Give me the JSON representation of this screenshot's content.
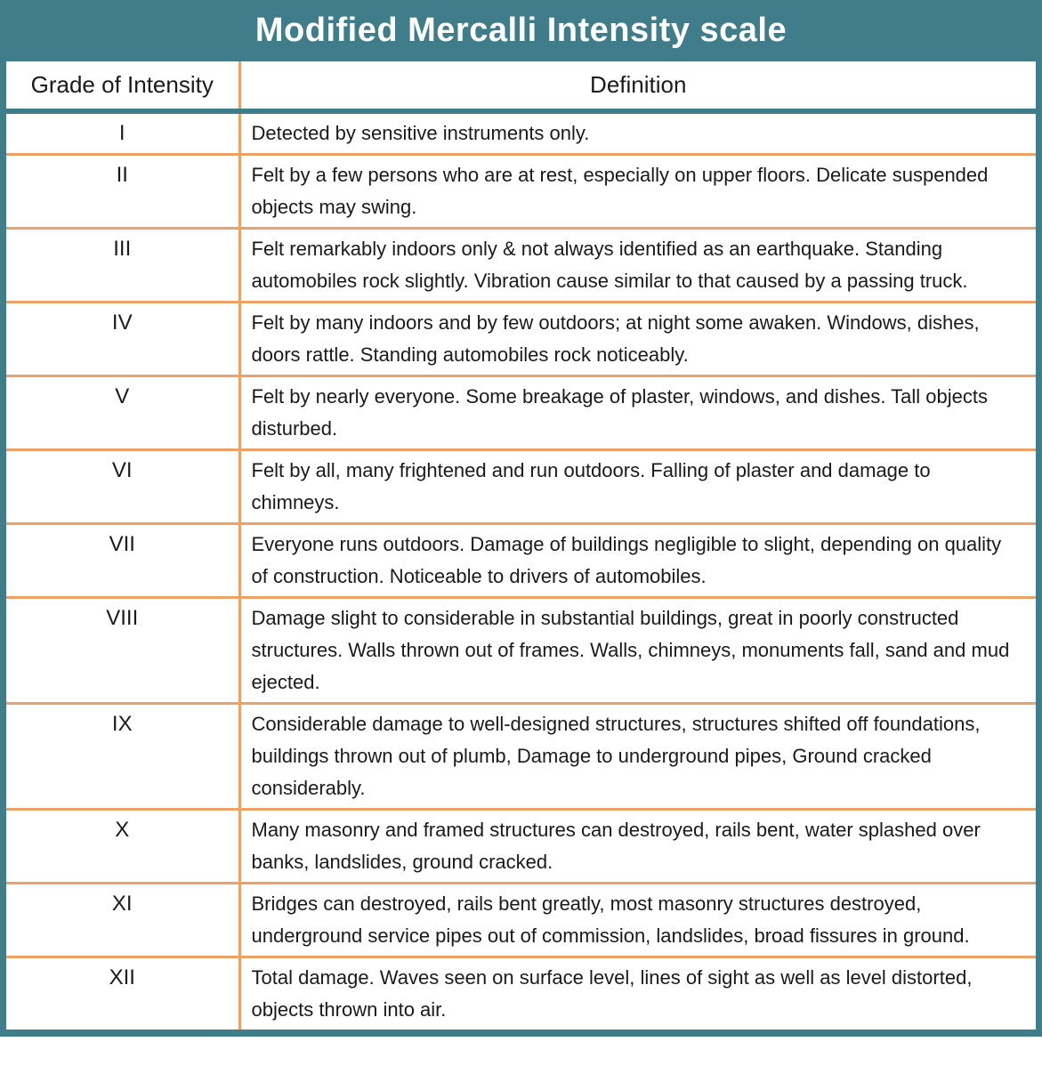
{
  "title": "Modified Mercalli Intensity scale",
  "colors": {
    "teal": "#407d8b",
    "orange": "#eda167",
    "title_text": "#ffffff",
    "body_text": "#1a1a1a"
  },
  "table": {
    "headers": [
      "Grade of Intensity",
      "Definition"
    ],
    "rows": [
      {
        "grade": "I",
        "definition": "Detected by sensitive instruments only."
      },
      {
        "grade": "II",
        "definition": "Felt by a few persons who are at rest, especially on upper floors. Delicate suspended objects may swing."
      },
      {
        "grade": "III",
        "definition": "Felt remarkably indoors only & not always identified as an earthquake. Standing automobiles rock slightly. Vibration cause similar to that caused by a passing truck."
      },
      {
        "grade": "IV",
        "definition": "Felt by many indoors and by few outdoors; at night some awaken. Windows, dishes, doors rattle. Standing automobiles rock noticeably."
      },
      {
        "grade": "V",
        "definition": "Felt by nearly everyone. Some breakage of plaster, windows, and dishes. Tall objects disturbed."
      },
      {
        "grade": "VI",
        "definition": "Felt by all, many frightened and run outdoors. Falling of plaster and damage to chimneys."
      },
      {
        "grade": "VII",
        "definition": "Everyone runs outdoors. Damage of buildings negligible to slight, depending on quality of construction. Noticeable to drivers of automobiles."
      },
      {
        "grade": "VIII",
        "definition": "Damage slight to considerable in substantial buildings, great in poorly constructed structures. Walls thrown out of frames. Walls, chimneys, monuments fall, sand and mud ejected."
      },
      {
        "grade": "IX",
        "definition": "Considerable damage to well-designed structures, structures shifted off foundations, buildings thrown out of plumb, Damage to underground pipes, Ground cracked considerably."
      },
      {
        "grade": "X",
        "definition": "Many masonry and framed structures can destroyed, rails bent, water splashed over banks, landslides, ground cracked."
      },
      {
        "grade": "XI",
        "definition": "Bridges can destroyed, rails bent greatly, most masonry structures destroyed, underground service pipes out of commission, landslides, broad fissures in ground."
      },
      {
        "grade": "XII",
        "definition": "Total damage. Waves seen on surface level, lines of sight as well as level distorted, objects thrown into air."
      }
    ]
  }
}
